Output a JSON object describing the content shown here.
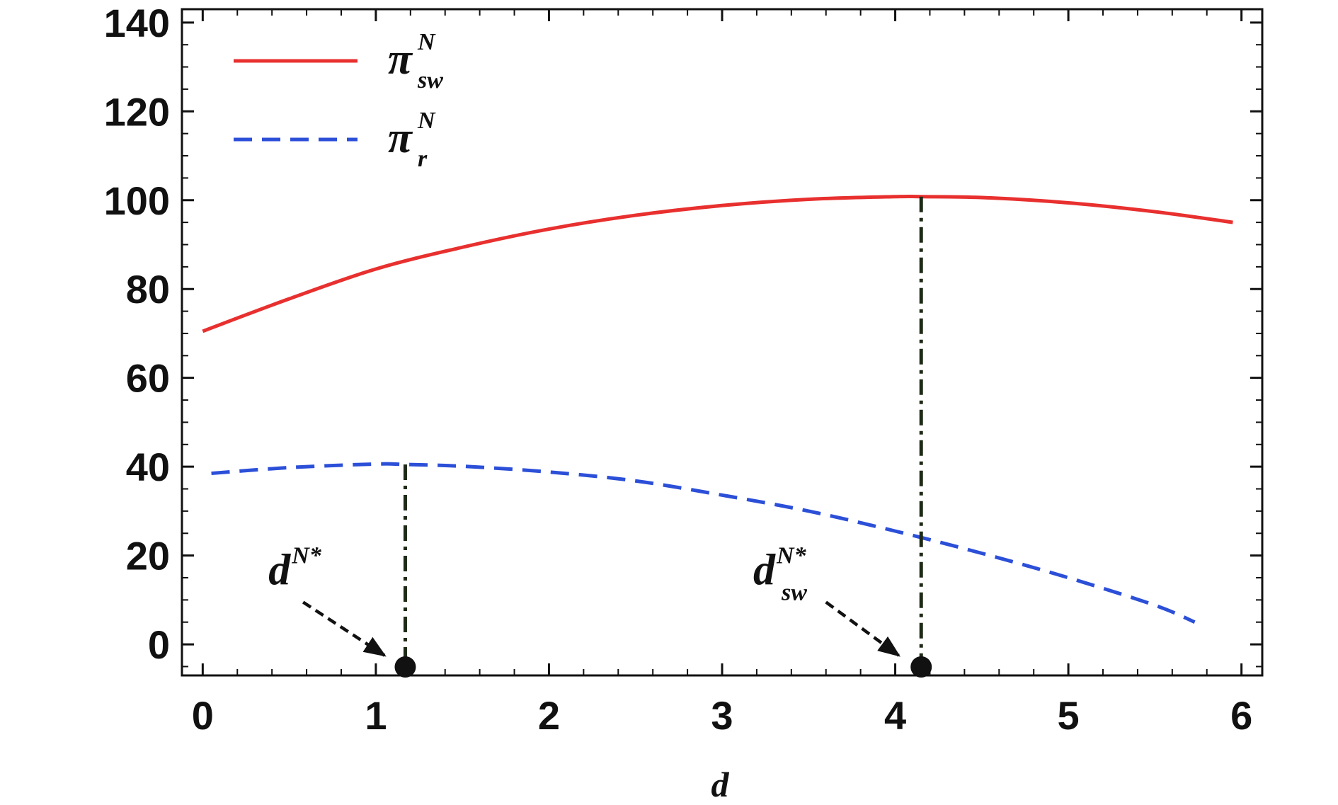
{
  "chart_data": {
    "type": "line",
    "xlabel": "d",
    "ylabel": "",
    "xlim": [
      -0.12,
      6.12
    ],
    "ylim": [
      -7,
      143
    ],
    "x_ticks": [
      0,
      1,
      2,
      3,
      4,
      5,
      6
    ],
    "y_ticks": [
      0,
      20,
      40,
      60,
      80,
      100,
      120,
      140
    ],
    "x_minor_step": 0.2,
    "y_minor_step": 5,
    "grid": false,
    "legend_position": "top-left",
    "series": [
      {
        "name": "π_sw^N",
        "name_base": "π",
        "name_sup": "N",
        "name_sub": "sw",
        "color": "#e8302f",
        "dash": "solid",
        "x": [
          0,
          0.5,
          1.0,
          1.5,
          2.0,
          2.5,
          3.0,
          3.5,
          4.0,
          4.15,
          4.5,
          5.0,
          5.5,
          5.95
        ],
        "y": [
          70.5,
          77.8,
          84.5,
          89.4,
          93.5,
          96.6,
          98.8,
          100.2,
          100.8,
          100.8,
          100.6,
          99.4,
          97.4,
          95.0
        ]
      },
      {
        "name": "π_r^N",
        "name_base": "π",
        "name_sup": "N",
        "name_sub": "r",
        "color": "#2c4fd8",
        "dash": "dashed",
        "x": [
          0.05,
          0.5,
          1.0,
          1.17,
          1.5,
          2.0,
          2.5,
          3.0,
          3.5,
          4.0,
          4.5,
          5.0,
          5.5,
          5.73
        ],
        "y": [
          38.5,
          39.8,
          40.6,
          40.5,
          40.1,
          38.8,
          36.8,
          33.6,
          30.0,
          25.5,
          20.5,
          15.0,
          8.8,
          5.0
        ]
      }
    ],
    "annotations": [
      {
        "label_base": "d",
        "label_sup": "N*",
        "label_sub": "",
        "x": 1.17,
        "y_top": 40.5,
        "text_at": [
          0.38,
          13.5
        ],
        "arrow_from": [
          0.58,
          9.5
        ],
        "arrow_to": [
          1.05,
          -2.5
        ]
      },
      {
        "label_base": "d",
        "label_sup": "N*",
        "label_sub": "sw",
        "x": 4.15,
        "y_top": 100.8,
        "text_at": [
          3.18,
          13.5
        ],
        "arrow_from": [
          3.6,
          9.5
        ],
        "arrow_to": [
          4.02,
          -2.5
        ]
      }
    ],
    "colors": {
      "axis": "#111111",
      "annotation_line": "#1e2a16",
      "arrow": "#111111",
      "marker": "#111111"
    }
  }
}
